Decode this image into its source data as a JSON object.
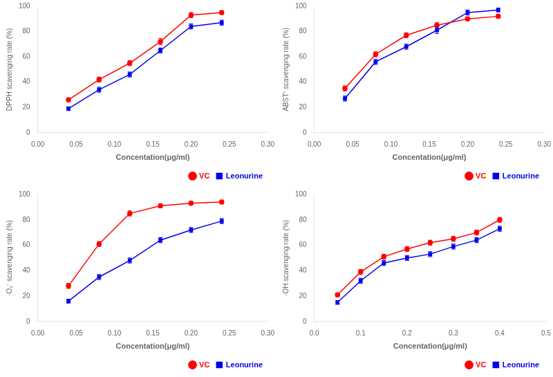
{
  "chart_data": [
    {
      "type": "line",
      "xlabel": "Concentation(μg/ml)",
      "ylabel": "DPPH scavenging rate (%)",
      "x": [
        0.04,
        0.08,
        0.12,
        0.16,
        0.2,
        0.24
      ],
      "series": [
        {
          "name": "VC",
          "color": "#FF0000",
          "marker": "circle",
          "values": [
            26,
            42,
            55,
            72,
            93,
            95
          ],
          "errors": [
            1.5,
            2.0,
            2.0,
            2.5,
            2.0,
            1.5
          ]
        },
        {
          "name": "Leonurine",
          "color": "#0000EE",
          "marker": "square",
          "values": [
            19,
            34,
            46,
            65,
            84,
            87
          ],
          "errors": [
            1.5,
            2.0,
            2.0,
            2.0,
            2.0,
            2.0
          ]
        }
      ],
      "xlim": [
        0.0,
        0.3
      ],
      "ylim": [
        0,
        100
      ],
      "xticks": [
        {
          "value": 0.0,
          "label": "0.00"
        },
        0.05,
        {
          "value": 0.1,
          "label": "0.10"
        },
        0.15,
        {
          "value": 0.2,
          "label": "0.20"
        },
        0.25,
        {
          "value": 0.3,
          "label": "0.30"
        }
      ],
      "yticks": [
        0,
        20,
        40,
        60,
        80,
        100
      ],
      "grid": false,
      "legend": "lower right"
    },
    {
      "type": "line",
      "xlabel": "Concentation(μg/ml)",
      "ylabel": "ABST⁺ scavenging rate (%)",
      "x": [
        0.04,
        0.08,
        0.12,
        0.16,
        0.2,
        0.24
      ],
      "series": [
        {
          "name": "VC",
          "color": "#FF0000",
          "marker": "circle",
          "values": [
            35,
            62,
            77,
            85,
            90,
            92
          ],
          "errors": [
            2.0,
            2.0,
            2.0,
            2.0,
            1.5,
            1.5
          ]
        },
        {
          "name": "Leonurine",
          "color": "#0000EE",
          "marker": "square",
          "values": [
            27,
            56,
            68,
            81,
            95,
            97
          ],
          "errors": [
            2.0,
            2.0,
            2.0,
            2.5,
            2.0,
            1.5
          ]
        }
      ],
      "xlim": [
        0.0,
        0.3
      ],
      "ylim": [
        0,
        100
      ],
      "xticks": [
        {
          "value": 0.0,
          "label": "0.00"
        },
        0.05,
        {
          "value": 0.1,
          "label": "0.10"
        },
        0.15,
        {
          "value": 0.2,
          "label": "0.20"
        },
        0.25,
        {
          "value": 0.3,
          "label": "0.30"
        }
      ],
      "yticks": [
        0,
        20,
        40,
        60,
        80,
        100
      ],
      "grid": false,
      "legend": "lower right"
    },
    {
      "type": "line",
      "xlabel": "Concentation(μg/ml)",
      "ylabel": "·O₂⁻ scavenging rate (%)",
      "x": [
        0.04,
        0.08,
        0.12,
        0.16,
        0.2,
        0.24
      ],
      "series": [
        {
          "name": "VC",
          "color": "#FF0000",
          "marker": "circle",
          "values": [
            28,
            61,
            85,
            91,
            93,
            94
          ],
          "errors": [
            2.0,
            2.0,
            2.0,
            1.5,
            1.5,
            1.5
          ]
        },
        {
          "name": "Leonurine",
          "color": "#0000EE",
          "marker": "square",
          "values": [
            16,
            35,
            48,
            64,
            72,
            79
          ],
          "errors": [
            1.5,
            2.0,
            2.0,
            2.0,
            2.0,
            2.0
          ]
        }
      ],
      "xlim": [
        0.0,
        0.3
      ],
      "ylim": [
        0,
        100
      ],
      "xticks": [
        {
          "value": 0.0,
          "label": "0.00"
        },
        0.05,
        {
          "value": 0.1,
          "label": "0.10"
        },
        0.15,
        {
          "value": 0.2,
          "label": "0.20"
        },
        0.25,
        {
          "value": 0.3,
          "label": "0.30"
        }
      ],
      "yticks": [
        0,
        20,
        40,
        60,
        80,
        100
      ],
      "grid": false,
      "legend": "lower right"
    },
    {
      "type": "line",
      "xlabel": "Concentation(μg/ml)",
      "ylabel": "·OH scavenging rate (%)",
      "x": [
        0.05,
        0.1,
        0.15,
        0.2,
        0.25,
        0.3,
        0.35,
        0.4
      ],
      "series": [
        {
          "name": "VC",
          "color": "#FF0000",
          "marker": "circle",
          "values": [
            21,
            39,
            51,
            57,
            62,
            65,
            70,
            80
          ],
          "errors": [
            1.5,
            2.0,
            2.0,
            2.0,
            2.0,
            2.0,
            2.0,
            2.0
          ]
        },
        {
          "name": "Leonurine",
          "color": "#0000EE",
          "marker": "square",
          "values": [
            15,
            32,
            46,
            50,
            53,
            59,
            64,
            73
          ],
          "errors": [
            1.5,
            2.0,
            2.0,
            2.0,
            2.0,
            2.0,
            2.0,
            2.0
          ]
        }
      ],
      "xlim": [
        0.0,
        0.5
      ],
      "ylim": [
        0,
        100
      ],
      "xticks": [
        {
          "value": 0.0,
          "label": "0.0"
        },
        0.1,
        0.2,
        0.3,
        0.4,
        0.5
      ],
      "yticks": [
        0,
        20,
        40,
        60,
        80,
        100
      ],
      "grid": false,
      "legend": "lower right"
    }
  ]
}
